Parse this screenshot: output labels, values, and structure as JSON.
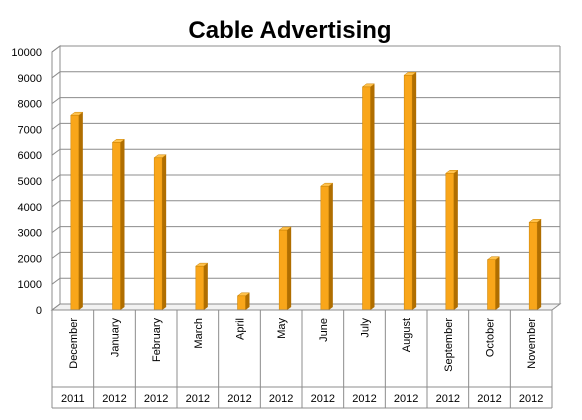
{
  "chart_data": {
    "type": "bar",
    "title": "Cable Advertising",
    "categories": [
      "December",
      "January",
      "February",
      "March",
      "April",
      "May",
      "June",
      "July",
      "August",
      "September",
      "October",
      "November"
    ],
    "years": [
      "2011",
      "2012",
      "2012",
      "2012",
      "2012",
      "2012",
      "2012",
      "2012",
      "2012",
      "2012",
      "2012",
      "2012"
    ],
    "values": [
      7550,
      6500,
      5900,
      1700,
      550,
      3100,
      4800,
      8650,
      9100,
      5300,
      1950,
      3400
    ],
    "ylim": [
      0,
      10000
    ],
    "yticks": [
      "0",
      "1000",
      "2000",
      "3000",
      "4000",
      "5000",
      "6000",
      "7000",
      "8000",
      "9000",
      "10000"
    ],
    "grid": true,
    "legend": "none",
    "bar_color": "#f9a61a",
    "bar_side_color": "#b06e00",
    "bar_top_color": "#ffc24d"
  }
}
